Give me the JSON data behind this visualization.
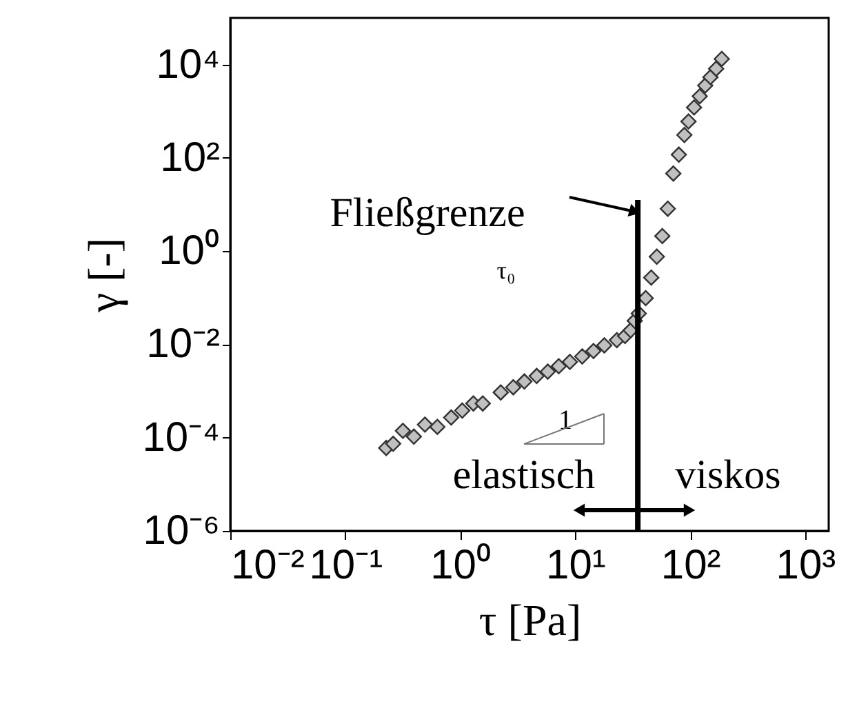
{
  "chart_data": {
    "type": "scatter",
    "xlabel": "τ  [Pa]",
    "ylabel": "γ [-]",
    "x": [
      0.227,
      0.261,
      0.317,
      0.395,
      0.493,
      0.632,
      0.834,
      1.04,
      1.3,
      1.57,
      2.25,
      2.89,
      3.61,
      4.62,
      5.77,
      7.19,
      8.98,
      11.5,
      14.4,
      17.9,
      23.0,
      27.1,
      30.3,
      32.9,
      35.7,
      41.0,
      45.8,
      51.2,
      57.2,
      63.8,
      71.3,
      79.6,
      88.9,
      96.6,
      108,
      121,
      135,
      150,
      168,
      188
    ],
    "series": [
      {
        "color": "#c0c0c0",
        "values": [
          6e-05,
          7.4e-05,
          0.00014,
          0.000105,
          0.00019,
          0.00017,
          0.00027,
          0.00038,
          0.00054,
          0.00054,
          0.00093,
          0.0012,
          0.0016,
          0.0021,
          0.0026,
          0.0034,
          0.0042,
          0.0055,
          0.0072,
          0.0095,
          0.0123,
          0.0151,
          0.02,
          0.032,
          0.046,
          0.098,
          0.27,
          0.76,
          2.1,
          8.1,
          46,
          117,
          309,
          603,
          1200,
          2090,
          3550,
          5370,
          8130,
          13200
        ]
      }
    ],
    "marker": "diamond",
    "log": "xy",
    "grid": false,
    "xlim": [
      0.01,
      1600
    ],
    "ylim": [
      1e-06,
      100000.0
    ],
    "xticks": [
      {
        "value": 0.01,
        "label": "10⁻²"
      },
      {
        "value": 0.1,
        "label": "10⁻¹"
      },
      {
        "value": 1,
        "label": "10⁰"
      },
      {
        "value": 10,
        "label": "10¹"
      },
      {
        "value": 100,
        "label": "10²"
      },
      {
        "value": 1000,
        "label": "10³"
      }
    ],
    "yticks": [
      {
        "value": 1e-06,
        "label": "10⁻⁶"
      },
      {
        "value": 0.0001,
        "label": "10⁻⁴"
      },
      {
        "value": 0.01,
        "label": "10⁻²"
      },
      {
        "value": 1,
        "label": "10⁰"
      },
      {
        "value": 100,
        "label": "10²"
      },
      {
        "value": 10000,
        "label": "10⁴"
      }
    ],
    "ref_lines": [
      {
        "axis": "x",
        "value": 35,
        "label": null,
        "color": "#000000"
      }
    ],
    "annotations": [
      {
        "text": "Fließgrenze",
        "x": 33,
        "y": 7
      },
      "τ₀",
      "1",
      "elastisch",
      "viskos"
    ]
  }
}
